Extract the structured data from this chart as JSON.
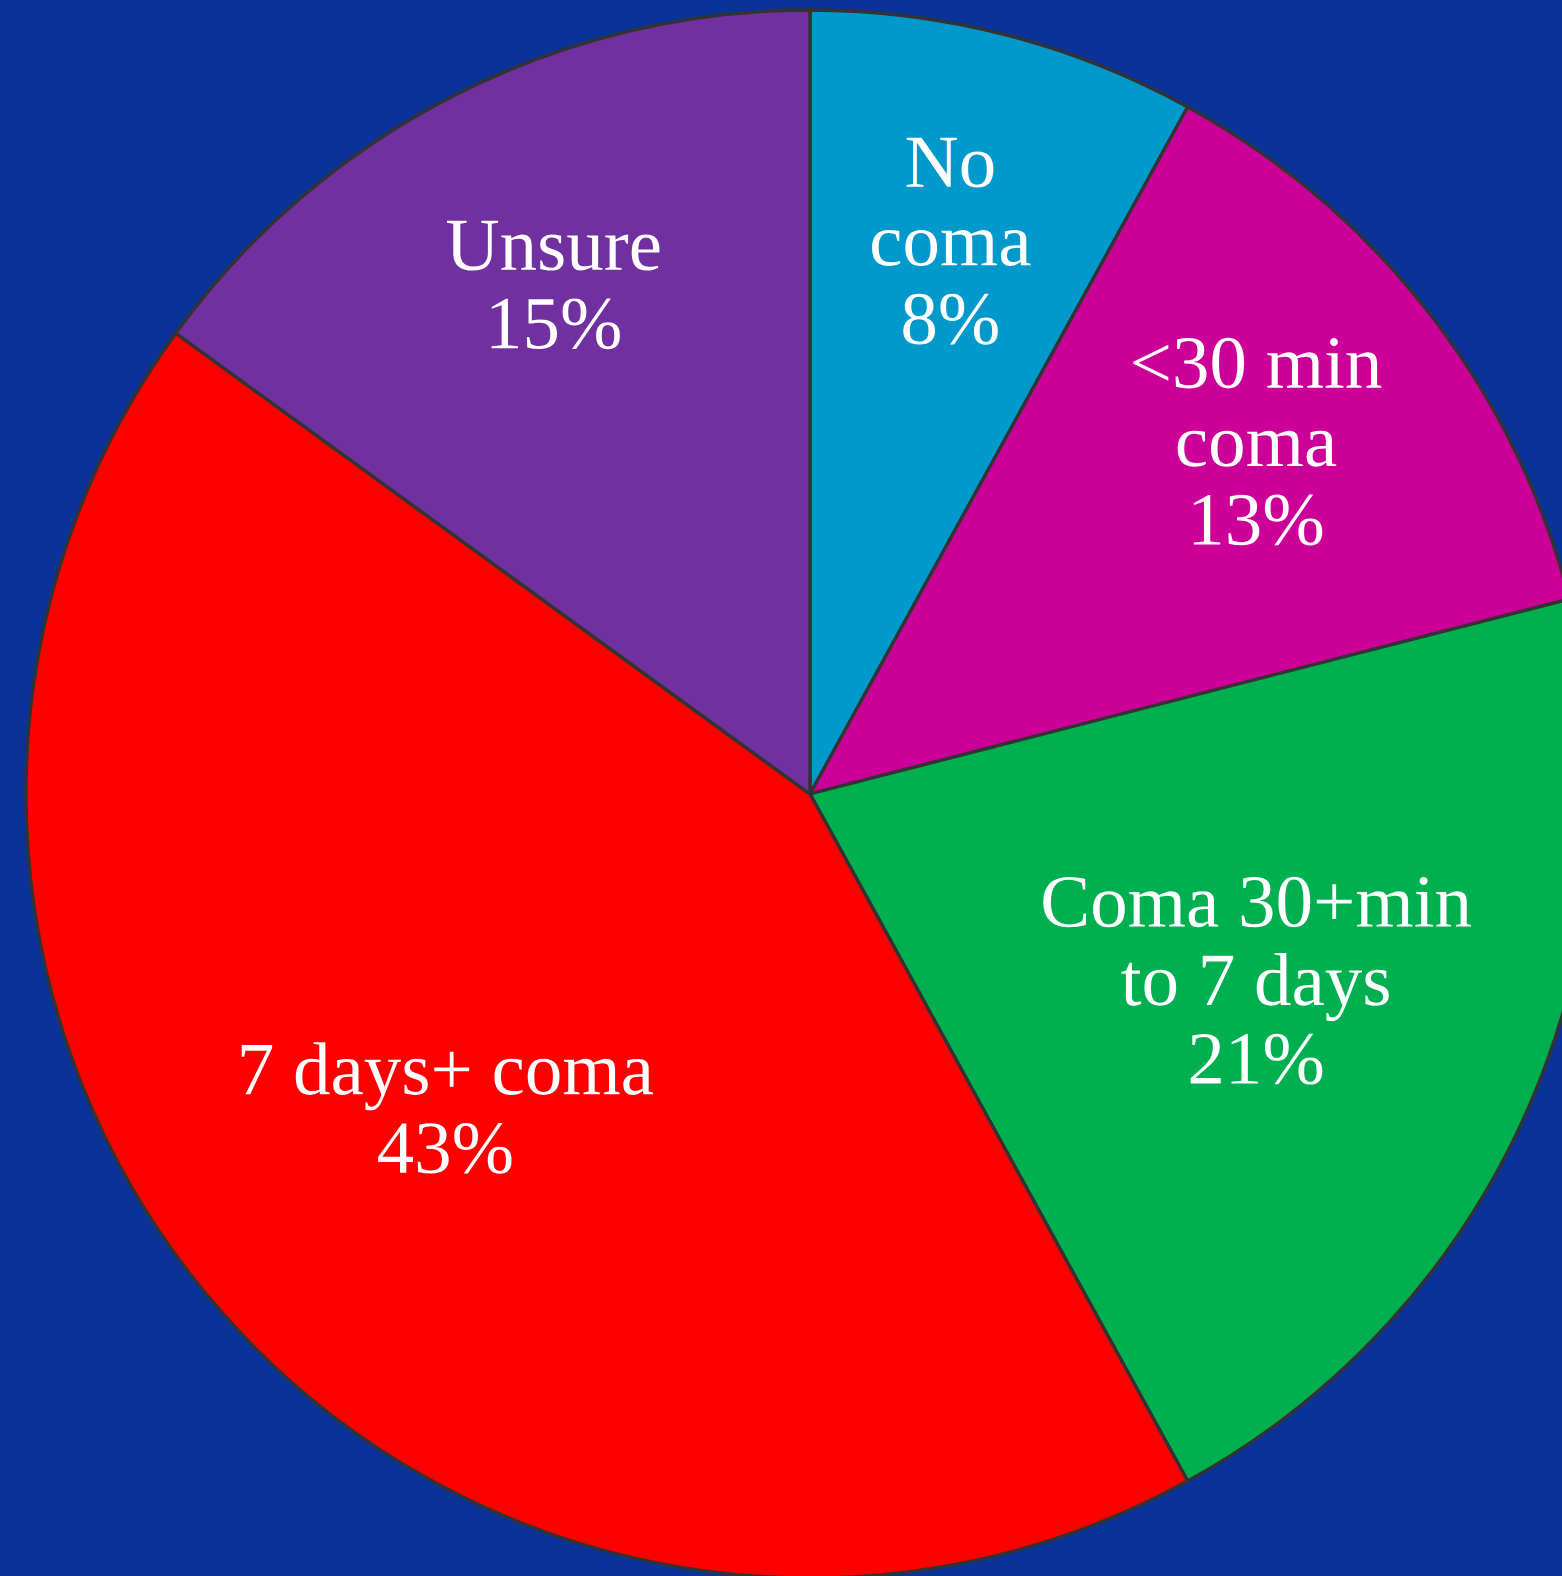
{
  "chart_data": {
    "type": "pie",
    "categories": [
      "No\ncoma",
      "<30 min\ncoma",
      "Coma 30+min\nto 7 days",
      "7 days+ coma",
      "Unsure"
    ],
    "values": [
      8,
      13,
      21,
      43,
      15
    ],
    "colors": [
      "#0099cc",
      "#cc0099",
      "#00b050",
      "#ff0000",
      "#7030a0"
    ],
    "value_labels": [
      "8%",
      "13%",
      "21%",
      "43%",
      "15%"
    ]
  }
}
